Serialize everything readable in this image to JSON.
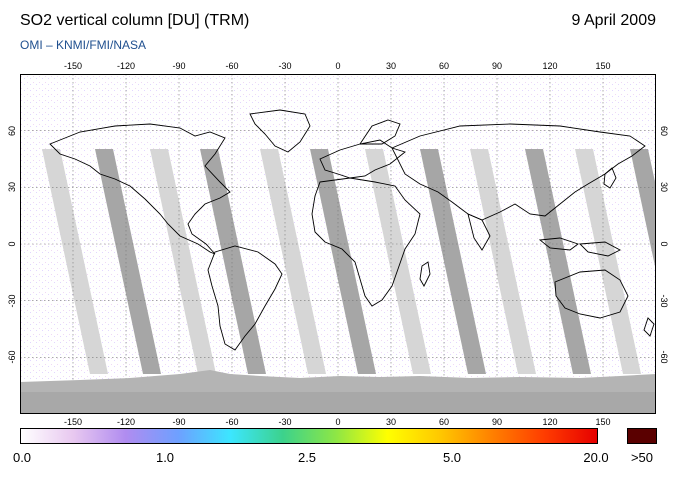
{
  "header": {
    "title": "SO2 vertical column [DU] (TRM)",
    "date": "9 April 2009",
    "subtitle": "OMI  –  KNMI/FMI/NASA"
  },
  "map": {
    "projection": "equirectangular",
    "lon_ticks": [
      "-150",
      "-120",
      "-90",
      "-60",
      "-30",
      "0",
      "30",
      "60",
      "90",
      "120",
      "150"
    ],
    "lat_ticks": [
      "60",
      "30",
      "0",
      "-30",
      "-60"
    ],
    "background_color": "#ffffff",
    "no_data_color": "#c8c8c8",
    "dark_swath_color": "#a6a6a6",
    "light_swath_color": "#d6d6d6",
    "coastline_color": "#000000",
    "antarctica_color": "#b4b4b4"
  },
  "colorbar": {
    "labels": [
      "0.0",
      "1.0",
      "2.5",
      "5.0",
      "20.0"
    ],
    "overflow_label": ">50",
    "overflow_color": "#5a0000",
    "gradient_colors": [
      "#ffffff",
      "#e8c8f0",
      "#b08cf0",
      "#6ea0ff",
      "#3ce6ff",
      "#3cd28c",
      "#8ce646",
      "#ffff00",
      "#ffc800",
      "#ff8000",
      "#ff3c00",
      "#e60000"
    ]
  }
}
